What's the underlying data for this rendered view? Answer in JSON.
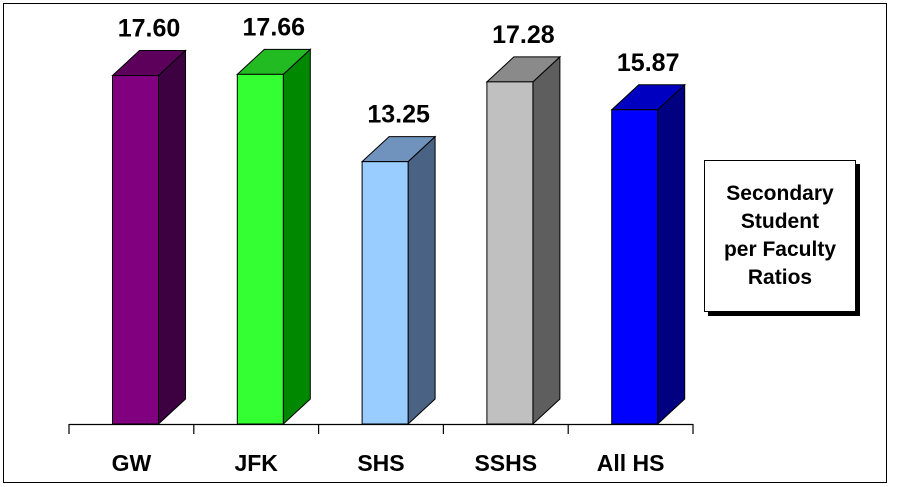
{
  "chart_data": {
    "type": "bar",
    "categories": [
      "GW",
      "JFK",
      "SHS",
      "SSHS",
      "All HS"
    ],
    "values": [
      17.6,
      17.66,
      13.25,
      17.28,
      15.87
    ],
    "value_labels": [
      "17.60",
      "17.66",
      "13.25",
      "17.28",
      "15.87"
    ],
    "legend_title": "Secondary\nStudent\nper Faculty\nRatios",
    "colors": {
      "front": [
        "#800080",
        "#33FF33",
        "#99CCFF",
        "#C0C0C0",
        "#0000FF"
      ],
      "side": [
        "#3D0040",
        "#008800",
        "#4A6284",
        "#5E5E5E",
        "#000080"
      ],
      "top": [
        "#5C005C",
        "#22BB22",
        "#6F93BD",
        "#8A8A8A",
        "#0000C0"
      ]
    },
    "style": "3d-bar",
    "grid": false,
    "legend_position": "right"
  }
}
